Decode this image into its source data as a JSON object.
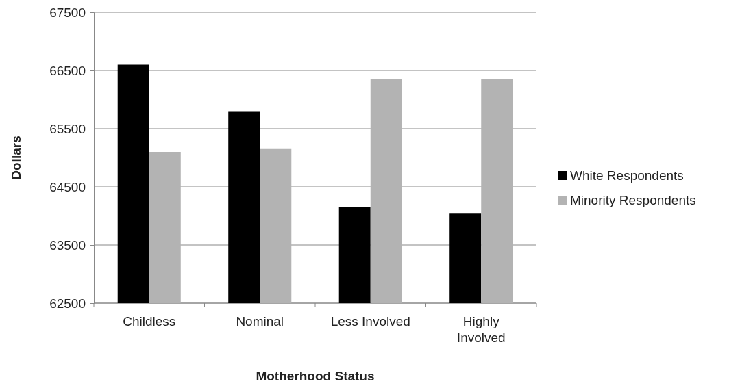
{
  "chart_data": {
    "type": "bar",
    "xlabel": "Motherhood Status",
    "ylabel": "Dollars",
    "categories": [
      "Childless",
      "Nominal",
      "Less Involved",
      "Highly Involved"
    ],
    "series": [
      {
        "name": "White Respondents",
        "color": "#000000",
        "values": [
          66600,
          65800,
          64150,
          64050
        ]
      },
      {
        "name": "Minority Respondents",
        "color": "#b3b3b3",
        "values": [
          65100,
          65150,
          66350,
          66350
        ]
      }
    ],
    "ylim": [
      62500,
      67500
    ],
    "yticks": [
      62500,
      63500,
      64500,
      65500,
      66500,
      67500
    ],
    "grid": "y",
    "legend": "right"
  }
}
